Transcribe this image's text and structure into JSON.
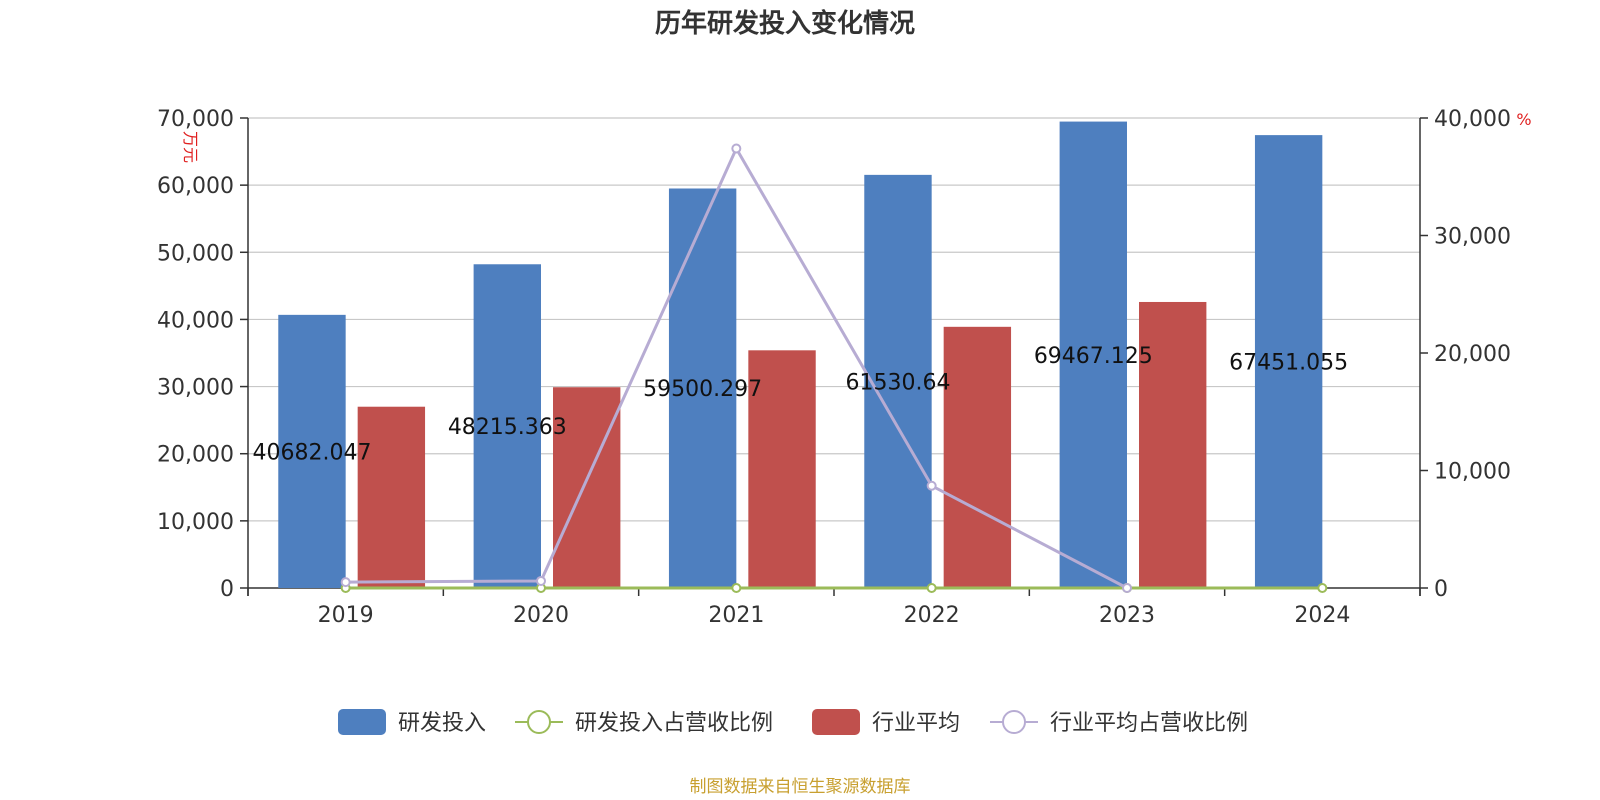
{
  "chart_data": {
    "type": "bar",
    "title": "历年研发投入变化情况",
    "categories": [
      "2019",
      "2020",
      "2021",
      "2022",
      "2023",
      "2024"
    ],
    "y_left": {
      "unit": "万元",
      "ylim": [
        0,
        70000
      ],
      "ticks": [
        "0",
        "10,000",
        "20,000",
        "30,000",
        "40,000",
        "50,000",
        "60,000",
        "70,000"
      ]
    },
    "y_right": {
      "unit": "%",
      "ylim": [
        0,
        40000
      ],
      "ticks": [
        "0",
        "10,000",
        "20,000",
        "30,000",
        "40,000"
      ]
    },
    "series": [
      {
        "name": "研发投入",
        "type": "bar",
        "axis": "left",
        "color": "#4e7fbf",
        "values": [
          40682.047,
          48215.363,
          59500.297,
          61530.64,
          69467.125,
          67451.055
        ],
        "labels": [
          "40682.047",
          "48215.363",
          "59500.297",
          "61530.64",
          "69467.125",
          "67451.055"
        ]
      },
      {
        "name": "研发投入占营收比例",
        "type": "line",
        "axis": "right",
        "color": "#9bbb59",
        "values": [
          0,
          0,
          0,
          0,
          0,
          0
        ]
      },
      {
        "name": "行业平均",
        "type": "bar",
        "axis": "left",
        "color": "#c0504d",
        "values": [
          27000,
          29900,
          35400,
          38900,
          42600,
          null
        ]
      },
      {
        "name": "行业平均占营收比例",
        "type": "line",
        "axis": "right",
        "color": "#b7acd3",
        "values": [
          500,
          600,
          37400,
          8700,
          0,
          null
        ]
      }
    ],
    "grid": true,
    "legend": "bottom-center"
  },
  "footer": {
    "source": "制图数据来自恒生聚源数据库",
    "color": "#c8a030"
  }
}
